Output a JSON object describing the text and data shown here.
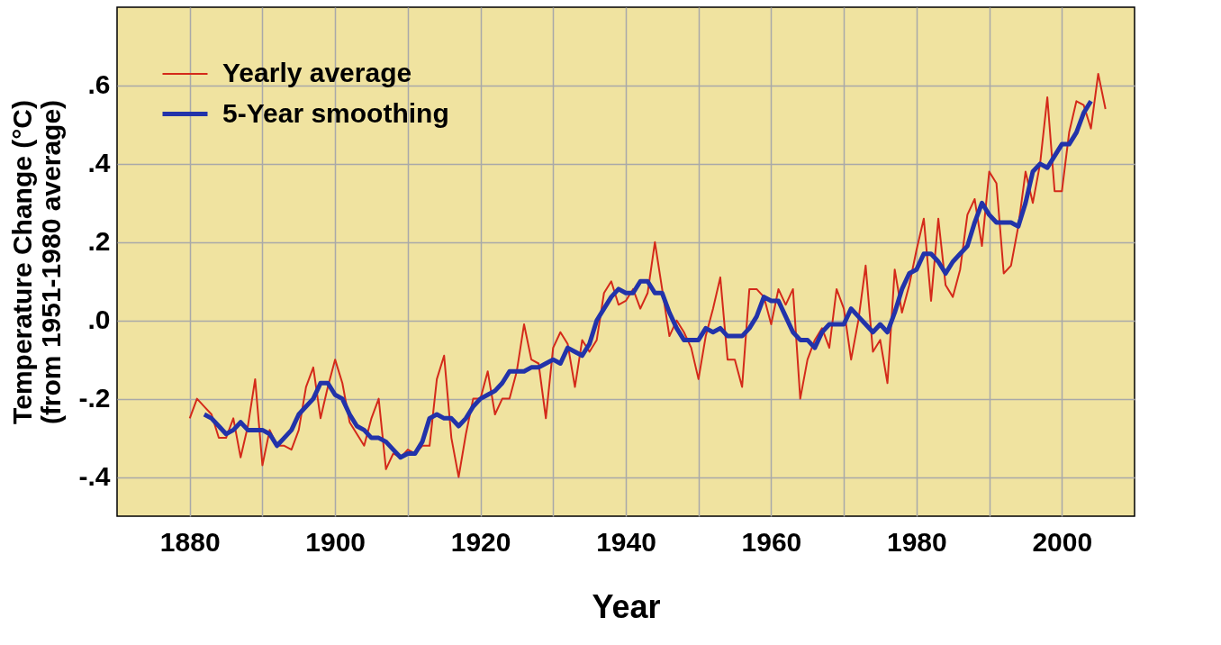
{
  "chart_data": {
    "type": "line",
    "xlabel": "Year",
    "ylabel": "Temperature Change (°C)\n(from 1951-1980 average)",
    "xlim": [
      1870,
      2010
    ],
    "ylim": [
      -0.5,
      0.8
    ],
    "xticks": [
      {
        "value": 1880,
        "label": "1880"
      },
      {
        "value": 1890,
        "label": null
      },
      {
        "value": 1900,
        "label": "1900"
      },
      {
        "value": 1910,
        "label": null
      },
      {
        "value": 1920,
        "label": "1920"
      },
      {
        "value": 1930,
        "label": null
      },
      {
        "value": 1940,
        "label": "1940"
      },
      {
        "value": 1950,
        "label": null
      },
      {
        "value": 1960,
        "label": "1960"
      },
      {
        "value": 1970,
        "label": null
      },
      {
        "value": 1980,
        "label": "1980"
      },
      {
        "value": 1990,
        "label": null
      },
      {
        "value": 2000,
        "label": "2000"
      }
    ],
    "yticks": [
      {
        "value": -0.4,
        "label": "-.4"
      },
      {
        "value": -0.2,
        "label": "-.2"
      },
      {
        "value": 0,
        "label": ".0"
      },
      {
        "value": 0.2,
        "label": ".2"
      },
      {
        "value": 0.4,
        "label": ".4"
      },
      {
        "value": 0.6,
        "label": ".6"
      }
    ],
    "grid": true,
    "legend": "top left",
    "marker": "none",
    "line_style": "solid",
    "series": [
      {
        "name": "Yearly average",
        "color": "#d42a1a",
        "x": [
          1880,
          1881,
          1882,
          1883,
          1884,
          1885,
          1886,
          1887,
          1888,
          1889,
          1890,
          1891,
          1892,
          1893,
          1894,
          1895,
          1896,
          1897,
          1898,
          1899,
          1900,
          1901,
          1902,
          1903,
          1904,
          1905,
          1906,
          1907,
          1908,
          1909,
          1910,
          1911,
          1912,
          1913,
          1914,
          1915,
          1916,
          1917,
          1918,
          1919,
          1920,
          1921,
          1922,
          1923,
          1924,
          1925,
          1926,
          1927,
          1928,
          1929,
          1930,
          1931,
          1932,
          1933,
          1934,
          1935,
          1936,
          1937,
          1938,
          1939,
          1940,
          1941,
          1942,
          1943,
          1944,
          1945,
          1946,
          1947,
          1948,
          1949,
          1950,
          1951,
          1952,
          1953,
          1954,
          1955,
          1956,
          1957,
          1958,
          1959,
          1960,
          1961,
          1962,
          1963,
          1964,
          1965,
          1966,
          1967,
          1968,
          1969,
          1970,
          1971,
          1972,
          1973,
          1974,
          1975,
          1976,
          1977,
          1978,
          1979,
          1980,
          1981,
          1982,
          1983,
          1984,
          1985,
          1986,
          1987,
          1988,
          1989,
          1990,
          1991,
          1992,
          1993,
          1994,
          1995,
          1996,
          1997,
          1998,
          1999,
          2000,
          2001,
          2002,
          2003,
          2004,
          2005,
          2006
        ],
        "values": [
          -0.25,
          -0.2,
          -0.22,
          -0.24,
          -0.3,
          -0.3,
          -0.25,
          -0.35,
          -0.27,
          -0.15,
          -0.37,
          -0.28,
          -0.32,
          -0.32,
          -0.33,
          -0.28,
          -0.17,
          -0.12,
          -0.25,
          -0.17,
          -0.1,
          -0.16,
          -0.26,
          -0.29,
          -0.32,
          -0.25,
          -0.2,
          -0.38,
          -0.34,
          -0.35,
          -0.33,
          -0.34,
          -0.32,
          -0.32,
          -0.15,
          -0.09,
          -0.3,
          -0.4,
          -0.29,
          -0.2,
          -0.2,
          -0.13,
          -0.24,
          -0.2,
          -0.2,
          -0.13,
          -0.01,
          -0.1,
          -0.11,
          -0.25,
          -0.07,
          -0.03,
          -0.06,
          -0.17,
          -0.05,
          -0.08,
          -0.05,
          0.07,
          0.1,
          0.04,
          0.05,
          0.08,
          0.03,
          0.07,
          0.2,
          0.08,
          -0.04,
          0.0,
          -0.03,
          -0.07,
          -0.15,
          -0.04,
          0.03,
          0.11,
          -0.1,
          -0.1,
          -0.17,
          0.08,
          0.08,
          0.06,
          -0.01,
          0.08,
          0.04,
          0.08,
          -0.2,
          -0.1,
          -0.05,
          -0.02,
          -0.07,
          0.08,
          0.03,
          -0.1,
          0.0,
          0.14,
          -0.08,
          -0.05,
          -0.16,
          0.13,
          0.02,
          0.09,
          0.18,
          0.26,
          0.05,
          0.26,
          0.09,
          0.06,
          0.13,
          0.27,
          0.31,
          0.19,
          0.38,
          0.35,
          0.12,
          0.14,
          0.24,
          0.38,
          0.3,
          0.4,
          0.57,
          0.33,
          0.33,
          0.48,
          0.56,
          0.55,
          0.49,
          0.63,
          0.54
        ]
      },
      {
        "name": "5-Year smoothing",
        "color": "#2233aa",
        "x": [
          1882,
          1883,
          1884,
          1885,
          1886,
          1887,
          1888,
          1889,
          1890,
          1891,
          1892,
          1893,
          1894,
          1895,
          1896,
          1897,
          1898,
          1899,
          1900,
          1901,
          1902,
          1903,
          1904,
          1905,
          1906,
          1907,
          1908,
          1909,
          1910,
          1911,
          1912,
          1913,
          1914,
          1915,
          1916,
          1917,
          1918,
          1919,
          1920,
          1921,
          1922,
          1923,
          1924,
          1925,
          1926,
          1927,
          1928,
          1929,
          1930,
          1931,
          1932,
          1933,
          1934,
          1935,
          1936,
          1937,
          1938,
          1939,
          1940,
          1941,
          1942,
          1943,
          1944,
          1945,
          1946,
          1947,
          1948,
          1949,
          1950,
          1951,
          1952,
          1953,
          1954,
          1955,
          1956,
          1957,
          1958,
          1959,
          1960,
          1961,
          1962,
          1963,
          1964,
          1965,
          1966,
          1967,
          1968,
          1969,
          1970,
          1971,
          1972,
          1973,
          1974,
          1975,
          1976,
          1977,
          1978,
          1979,
          1980,
          1981,
          1982,
          1983,
          1984,
          1985,
          1986,
          1987,
          1988,
          1989,
          1990,
          1991,
          1992,
          1993,
          1994,
          1995,
          1996,
          1997,
          1998,
          1999,
          2000,
          2001,
          2002,
          2003,
          2004
        ],
        "values": [
          -0.24,
          -0.25,
          -0.27,
          -0.29,
          -0.28,
          -0.26,
          -0.28,
          -0.28,
          -0.28,
          -0.29,
          -0.32,
          -0.3,
          -0.28,
          -0.24,
          -0.22,
          -0.2,
          -0.16,
          -0.16,
          -0.19,
          -0.2,
          -0.24,
          -0.27,
          -0.28,
          -0.3,
          -0.3,
          -0.31,
          -0.33,
          -0.35,
          -0.34,
          -0.34,
          -0.31,
          -0.25,
          -0.24,
          -0.25,
          -0.25,
          -0.27,
          -0.25,
          -0.22,
          -0.2,
          -0.19,
          -0.18,
          -0.16,
          -0.13,
          -0.13,
          -0.13,
          -0.12,
          -0.12,
          -0.11,
          -0.1,
          -0.11,
          -0.07,
          -0.08,
          -0.09,
          -0.06,
          0.0,
          0.03,
          0.06,
          0.08,
          0.07,
          0.07,
          0.1,
          0.1,
          0.07,
          0.07,
          0.02,
          -0.02,
          -0.05,
          -0.05,
          -0.05,
          -0.02,
          -0.03,
          -0.02,
          -0.04,
          -0.04,
          -0.04,
          -0.02,
          0.01,
          0.06,
          0.05,
          0.05,
          0.01,
          -0.03,
          -0.05,
          -0.05,
          -0.07,
          -0.03,
          -0.01,
          -0.01,
          -0.01,
          0.03,
          0.01,
          -0.01,
          -0.03,
          -0.01,
          -0.03,
          0.02,
          0.08,
          0.12,
          0.13,
          0.17,
          0.17,
          0.15,
          0.12,
          0.15,
          0.17,
          0.19,
          0.25,
          0.3,
          0.27,
          0.25,
          0.25,
          0.25,
          0.24,
          0.3,
          0.38,
          0.4,
          0.39,
          0.42,
          0.45,
          0.45,
          0.48,
          0.53,
          0.56
        ]
      }
    ]
  }
}
